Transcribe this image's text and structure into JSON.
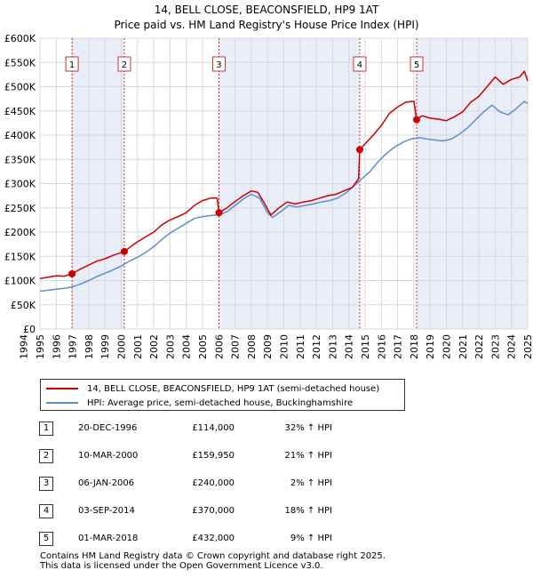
{
  "title": {
    "line1": "14, BELL CLOSE, BEACONSFIELD, HP9 1AT",
    "line2": "Price paid vs. HM Land Registry's House Price Index (HPI)"
  },
  "legend": {
    "property_label": "14, BELL CLOSE, BEACONSFIELD, HP9 1AT (semi-detached house)",
    "hpi_label": "HPI: Average price, semi-detached house, Buckinghamshire"
  },
  "colors": {
    "property": "#cc0000",
    "hpi": "#5b8fd0",
    "shade": "#e8edf8",
    "marker_line": "#cc3333"
  },
  "transactions": [
    {
      "num": "1",
      "date": "20-DEC-1996",
      "price": "£114,000",
      "hpi": "32% ↑ HPI"
    },
    {
      "num": "2",
      "date": "10-MAR-2000",
      "price": "£159,950",
      "hpi": "21% ↑ HPI"
    },
    {
      "num": "3",
      "date": "06-JAN-2006",
      "price": "£240,000",
      "hpi": "2% ↑ HPI"
    },
    {
      "num": "4",
      "date": "03-SEP-2014",
      "price": "£370,000",
      "hpi": "18% ↑ HPI"
    },
    {
      "num": "5",
      "date": "01-MAR-2018",
      "price": "£432,000",
      "hpi": "9% ↑ HPI"
    }
  ],
  "footer": {
    "line1": "Contains HM Land Registry data © Crown copyright and database right 2025.",
    "line2": "This data is licensed under the Open Government Licence v3.0."
  },
  "chart_data": {
    "type": "line",
    "xlim": [
      1995,
      2025
    ],
    "ylim": [
      0,
      600000
    ],
    "x_ticks": [
      "1994",
      "1995",
      "1996",
      "1997",
      "1998",
      "1999",
      "2000",
      "2001",
      "2002",
      "2003",
      "2004",
      "2005",
      "2006",
      "2007",
      "2008",
      "2009",
      "2010",
      "2011",
      "2012",
      "2013",
      "2014",
      "2015",
      "2016",
      "2017",
      "2018",
      "2019",
      "2020",
      "2021",
      "2022",
      "2023",
      "2024",
      "2025"
    ],
    "y_ticks": [
      {
        "value": 0,
        "label": "£0"
      },
      {
        "value": 50000,
        "label": "£50K"
      },
      {
        "value": 100000,
        "label": "£100K"
      },
      {
        "value": 150000,
        "label": "£150K"
      },
      {
        "value": 200000,
        "label": "£200K"
      },
      {
        "value": 250000,
        "label": "£250K"
      },
      {
        "value": 300000,
        "label": "£300K"
      },
      {
        "value": 350000,
        "label": "£350K"
      },
      {
        "value": 400000,
        "label": "£400K"
      },
      {
        "value": 450000,
        "label": "£450K"
      },
      {
        "value": 500000,
        "label": "£500K"
      },
      {
        "value": 550000,
        "label": "£550K"
      },
      {
        "value": 600000,
        "label": "£600K"
      }
    ],
    "grid": true,
    "sales": [
      {
        "label": "1",
        "x": 1996.97,
        "y": 114000
      },
      {
        "label": "2",
        "x": 2000.19,
        "y": 159950
      },
      {
        "label": "3",
        "x": 2006.01,
        "y": 240000
      },
      {
        "label": "4",
        "x": 2014.67,
        "y": 370000
      },
      {
        "label": "5",
        "x": 2018.17,
        "y": 432000
      }
    ],
    "series": [
      {
        "name": "14, BELL CLOSE, BEACONSFIELD, HP9 1AT (semi-detached house)",
        "points": [
          [
            1995.0,
            104000
          ],
          [
            1995.5,
            107000
          ],
          [
            1996.0,
            110000
          ],
          [
            1996.5,
            109000
          ],
          [
            1996.97,
            114000
          ],
          [
            1997.5,
            124000
          ],
          [
            1998.0,
            132000
          ],
          [
            1998.5,
            140000
          ],
          [
            1999.0,
            145000
          ],
          [
            1999.5,
            152000
          ],
          [
            2000.19,
            159950
          ],
          [
            2000.7,
            173000
          ],
          [
            2001.0,
            180000
          ],
          [
            2001.5,
            190000
          ],
          [
            2002.0,
            200000
          ],
          [
            2002.5,
            215000
          ],
          [
            2003.0,
            225000
          ],
          [
            2003.5,
            232000
          ],
          [
            2004.0,
            240000
          ],
          [
            2004.5,
            255000
          ],
          [
            2005.0,
            265000
          ],
          [
            2005.5,
            270000
          ],
          [
            2005.9,
            270000
          ],
          [
            2006.01,
            240000
          ],
          [
            2006.5,
            250000
          ],
          [
            2007.0,
            263000
          ],
          [
            2007.5,
            275000
          ],
          [
            2008.0,
            285000
          ],
          [
            2008.4,
            282000
          ],
          [
            2008.8,
            260000
          ],
          [
            2009.2,
            235000
          ],
          [
            2009.7,
            250000
          ],
          [
            2010.2,
            262000
          ],
          [
            2010.7,
            258000
          ],
          [
            2011.2,
            262000
          ],
          [
            2011.7,
            265000
          ],
          [
            2012.2,
            270000
          ],
          [
            2012.7,
            275000
          ],
          [
            2013.2,
            278000
          ],
          [
            2013.7,
            285000
          ],
          [
            2014.2,
            292000
          ],
          [
            2014.6,
            310000
          ],
          [
            2014.67,
            370000
          ],
          [
            2015.0,
            382000
          ],
          [
            2015.5,
            400000
          ],
          [
            2016.0,
            420000
          ],
          [
            2016.5,
            445000
          ],
          [
            2017.0,
            458000
          ],
          [
            2017.5,
            468000
          ],
          [
            2018.0,
            470000
          ],
          [
            2018.17,
            432000
          ],
          [
            2018.5,
            440000
          ],
          [
            2019.0,
            435000
          ],
          [
            2019.5,
            433000
          ],
          [
            2020.0,
            430000
          ],
          [
            2020.5,
            438000
          ],
          [
            2021.0,
            448000
          ],
          [
            2021.5,
            468000
          ],
          [
            2022.0,
            480000
          ],
          [
            2022.5,
            500000
          ],
          [
            2023.0,
            520000
          ],
          [
            2023.5,
            505000
          ],
          [
            2024.0,
            515000
          ],
          [
            2024.5,
            520000
          ],
          [
            2024.8,
            532000
          ],
          [
            2025.0,
            512000
          ]
        ]
      },
      {
        "name": "HPI: Average price, semi-detached house, Buckinghamshire",
        "points": [
          [
            1995.0,
            78000
          ],
          [
            1995.5,
            80000
          ],
          [
            1996.0,
            82000
          ],
          [
            1996.5,
            84000
          ],
          [
            1997.0,
            87000
          ],
          [
            1997.5,
            93000
          ],
          [
            1998.0,
            100000
          ],
          [
            1998.5,
            108000
          ],
          [
            1999.0,
            115000
          ],
          [
            1999.5,
            122000
          ],
          [
            2000.0,
            130000
          ],
          [
            2000.5,
            140000
          ],
          [
            2001.0,
            148000
          ],
          [
            2001.5,
            158000
          ],
          [
            2002.0,
            170000
          ],
          [
            2002.5,
            185000
          ],
          [
            2003.0,
            198000
          ],
          [
            2003.5,
            208000
          ],
          [
            2004.0,
            218000
          ],
          [
            2004.5,
            228000
          ],
          [
            2005.0,
            232000
          ],
          [
            2005.5,
            234000
          ],
          [
            2006.0,
            236000
          ],
          [
            2006.5,
            242000
          ],
          [
            2007.0,
            255000
          ],
          [
            2007.5,
            268000
          ],
          [
            2008.0,
            278000
          ],
          [
            2008.5,
            270000
          ],
          [
            2009.0,
            240000
          ],
          [
            2009.3,
            230000
          ],
          [
            2009.8,
            242000
          ],
          [
            2010.3,
            255000
          ],
          [
            2010.8,
            252000
          ],
          [
            2011.3,
            255000
          ],
          [
            2011.8,
            258000
          ],
          [
            2012.3,
            262000
          ],
          [
            2012.8,
            265000
          ],
          [
            2013.3,
            270000
          ],
          [
            2013.8,
            280000
          ],
          [
            2014.3,
            295000
          ],
          [
            2014.8,
            310000
          ],
          [
            2015.3,
            325000
          ],
          [
            2015.8,
            345000
          ],
          [
            2016.3,
            362000
          ],
          [
            2016.8,
            375000
          ],
          [
            2017.3,
            385000
          ],
          [
            2017.8,
            392000
          ],
          [
            2018.3,
            395000
          ],
          [
            2018.8,
            392000
          ],
          [
            2019.3,
            390000
          ],
          [
            2019.8,
            388000
          ],
          [
            2020.3,
            392000
          ],
          [
            2020.8,
            402000
          ],
          [
            2021.3,
            415000
          ],
          [
            2021.8,
            432000
          ],
          [
            2022.3,
            448000
          ],
          [
            2022.8,
            462000
          ],
          [
            2023.3,
            448000
          ],
          [
            2023.8,
            442000
          ],
          [
            2024.3,
            455000
          ],
          [
            2024.8,
            470000
          ],
          [
            2025.0,
            465000
          ]
        ]
      }
    ]
  }
}
